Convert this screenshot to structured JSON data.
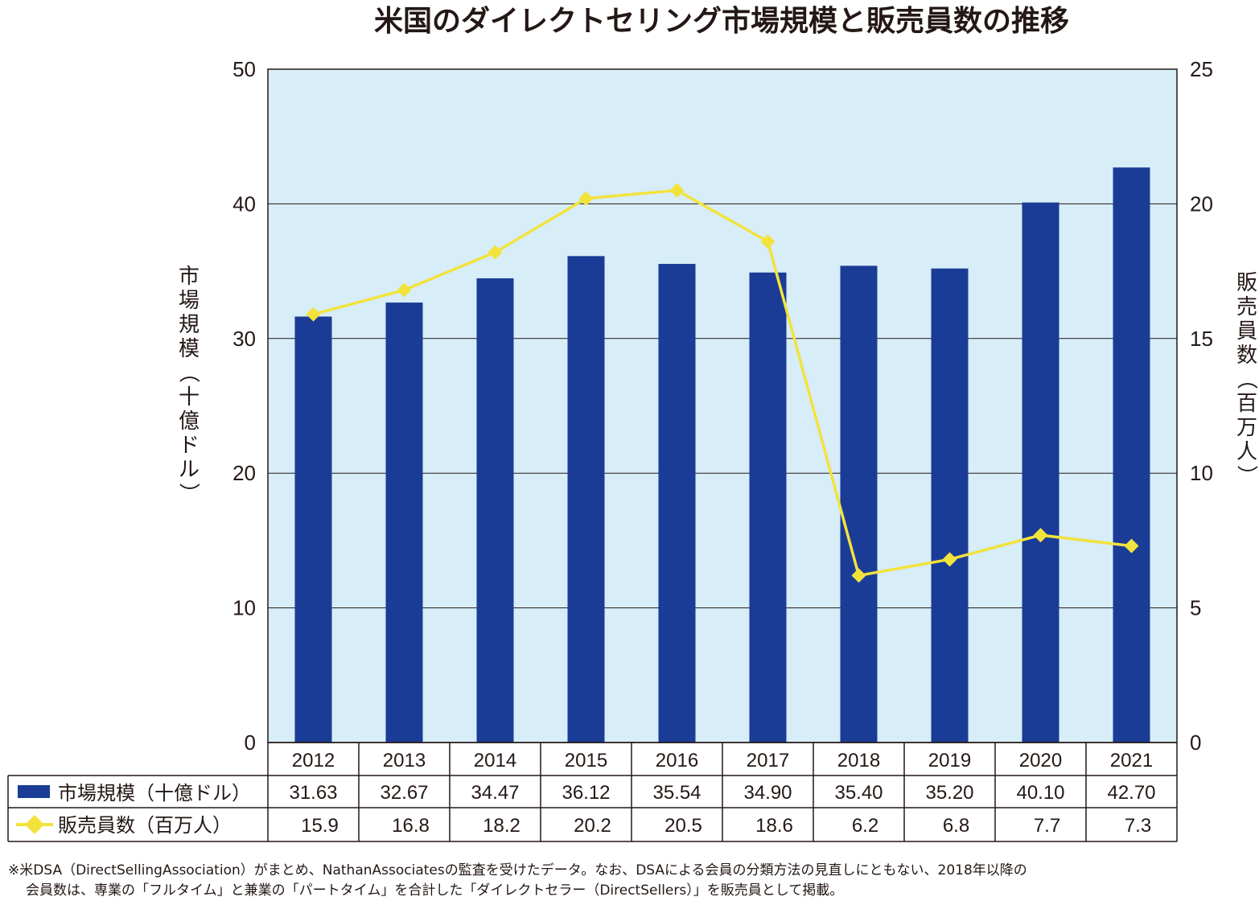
{
  "chart_data": {
    "type": "bar",
    "title": "米国のダイレクトセリング市場規模と販売員数の推移",
    "categories": [
      "2012",
      "2013",
      "2014",
      "2015",
      "2016",
      "2017",
      "2018",
      "2019",
      "2020",
      "2021"
    ],
    "series": [
      {
        "name": "市場規模（十億ドル）",
        "kind": "bar",
        "axis": "left",
        "color": "#1a3c96",
        "values": [
          31.63,
          32.67,
          34.47,
          36.12,
          35.54,
          34.9,
          35.4,
          35.2,
          40.1,
          42.7
        ],
        "labels": [
          "31.63",
          "32.67",
          "34.47",
          "36.12",
          "35.54",
          "34.90",
          "35.40",
          "35.20",
          "40.10",
          "42.70"
        ]
      },
      {
        "name": "販売員数（百万人）",
        "kind": "line",
        "axis": "right",
        "color": "#f2e33c",
        "values": [
          15.9,
          16.8,
          18.2,
          20.2,
          20.5,
          18.6,
          6.2,
          6.8,
          7.7,
          7.3
        ],
        "labels": [
          "15.9",
          "16.8",
          "18.2",
          "20.2",
          "20.5",
          "18.6",
          "6.2",
          "6.8",
          "7.7",
          "7.3"
        ]
      }
    ],
    "ylabel": "市場規模（十億ドル）",
    "y2label": "販売員数（百万人）",
    "ylim": [
      0,
      50
    ],
    "y2lim": [
      0,
      25
    ],
    "yticks": [
      "0",
      "10",
      "20",
      "30",
      "40",
      "50"
    ],
    "y2ticks": [
      "0",
      "5",
      "10",
      "15",
      "20",
      "25"
    ],
    "grid": true,
    "plot_background": "#d7edf8",
    "legend": "data table below plot",
    "footnote": [
      "※米DSA（DirectSellingAssociation）がまとめ、NathanAssociatesの監査を受けたデータ。なお、DSAによる会員の分類方法の見直しにともない、2018年以降の",
      "会員数は、専業の「フルタイム」と兼業の「パートタイム」を合計した「ダイレクトセラー（DirectSellers）」を販売員として掲載。"
    ]
  }
}
